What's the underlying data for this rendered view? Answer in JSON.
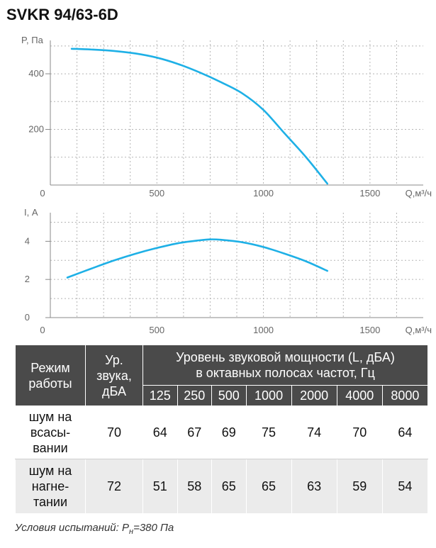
{
  "title": "SVKR 94/63-6D",
  "chart_data": [
    {
      "type": "line",
      "ylabel": "P, Па",
      "xlabel": "Q,м³/ч",
      "xlim": [
        0,
        1750
      ],
      "ylim": [
        0,
        520
      ],
      "xticks": [
        "0",
        "500",
        "1000",
        "1500"
      ],
      "xtick_values": [
        0,
        500,
        1000,
        1500
      ],
      "yticks": [
        "200",
        "400"
      ],
      "ytick_values": [
        200,
        400
      ],
      "grid": true,
      "series": [
        {
          "x": [
            100,
            200,
            300,
            400,
            500,
            600,
            700,
            800,
            900,
            1000,
            1100,
            1200,
            1300
          ],
          "y": [
            490,
            487,
            482,
            473,
            458,
            435,
            405,
            370,
            330,
            270,
            185,
            100,
            5
          ]
        }
      ]
    },
    {
      "type": "line",
      "ylabel": "I, А",
      "xlabel": "Q,м³/ч",
      "xlim": [
        0,
        1750
      ],
      "ylim": [
        0,
        5.5
      ],
      "xticks": [
        "0",
        "500",
        "1000",
        "1500"
      ],
      "xtick_values": [
        0,
        500,
        1000,
        1500
      ],
      "yticks": [
        "0",
        "2",
        "4"
      ],
      "ytick_values": [
        0,
        2,
        4
      ],
      "grid": true,
      "series": [
        {
          "x": [
            80,
            200,
            300,
            400,
            500,
            600,
            700,
            750,
            800,
            900,
            1000,
            1100,
            1200,
            1300
          ],
          "y": [
            2.1,
            2.6,
            3.0,
            3.35,
            3.65,
            3.9,
            4.05,
            4.1,
            4.08,
            3.95,
            3.7,
            3.35,
            2.95,
            2.45
          ]
        }
      ]
    }
  ],
  "table": {
    "mode_header": [
      "Режим",
      "работы"
    ],
    "level_header": [
      "Ур.",
      "звука,",
      "дБА"
    ],
    "band_header": [
      "Уровень звуковой мощности (L, дБА)",
      "в октавных полосах частот, Гц"
    ],
    "bands": [
      "125",
      "250",
      "500",
      "1000",
      "2000",
      "4000",
      "8000"
    ],
    "rows": [
      {
        "mode": [
          "шум на",
          "всасы-",
          "вании"
        ],
        "level": "70",
        "values": [
          "64",
          "67",
          "69",
          "75",
          "74",
          "70",
          "64"
        ]
      },
      {
        "mode": [
          "шум на",
          "нагне-",
          "тании"
        ],
        "level": "72",
        "values": [
          "51",
          "58",
          "65",
          "65",
          "63",
          "59",
          "54"
        ]
      }
    ]
  },
  "footnote": {
    "prefix": "Условия испытаний: P",
    "subscript": "н",
    "suffix": "=380 Па"
  },
  "colors": {
    "curve": "#1eb0e6",
    "header_bg": "#4a4a4a",
    "alt_row_bg": "#ebebeb"
  }
}
